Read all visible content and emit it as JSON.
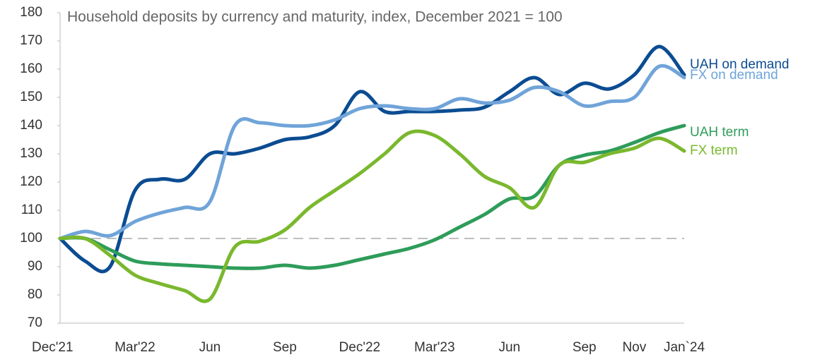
{
  "chart_data": {
    "type": "line",
    "title": "Household deposits by currency and maturity, index, December 2021 = 100",
    "categories": [
      "Dec'21",
      null,
      null,
      "Mar'22",
      null,
      null,
      "Jun",
      null,
      null,
      "Sep",
      null,
      null,
      "Dec'22",
      null,
      null,
      "Mar'23",
      null,
      null,
      "Jun",
      null,
      null,
      "Sep",
      null,
      "Nov",
      null,
      "Jan`24"
    ],
    "series": [
      {
        "name": "UAH on demand",
        "color": "#0b4c92",
        "values": [
          100,
          92,
          90,
          117,
          121,
          121,
          130,
          130,
          132,
          135,
          136,
          140,
          152,
          145,
          145,
          145,
          145.5,
          146.5,
          152,
          157,
          151,
          155,
          153,
          158,
          168,
          158
        ]
      },
      {
        "name": "FX on demand",
        "color": "#70a4d9",
        "values": [
          100,
          102.5,
          101,
          106,
          109,
          111,
          113,
          140,
          141,
          140,
          140,
          142,
          146,
          147,
          146,
          146,
          149.5,
          148,
          149,
          153.5,
          152,
          147,
          148.5,
          150,
          161,
          157
        ]
      },
      {
        "name": "UAH term",
        "color": "#2e9c5a",
        "values": [
          100,
          100,
          96,
          92,
          91,
          90.5,
          90,
          89.5,
          89.5,
          90.5,
          89.5,
          90.5,
          92.5,
          94.5,
          96.5,
          99.5,
          104,
          108.5,
          114,
          115,
          126,
          129.5,
          131,
          134,
          137.5,
          140
        ]
      },
      {
        "name": "FX term",
        "color": "#7ab82e",
        "values": [
          100,
          100,
          94,
          87,
          84,
          81.5,
          78.5,
          97,
          99,
          103,
          111,
          117,
          123,
          130,
          137.5,
          136.5,
          130,
          122,
          118,
          111,
          126,
          127,
          130,
          132,
          135.5,
          131
        ]
      }
    ],
    "reference": 100,
    "ylim": [
      70,
      180
    ],
    "yticks": [
      70,
      80,
      90,
      100,
      110,
      120,
      130,
      140,
      150,
      160,
      170,
      180
    ]
  }
}
